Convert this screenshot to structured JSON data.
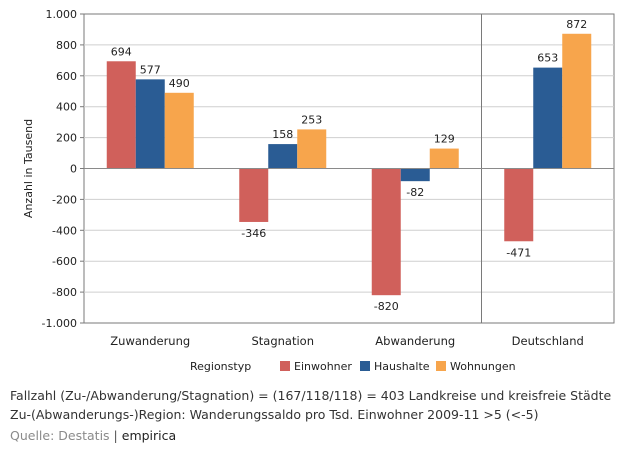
{
  "chart_data": {
    "type": "bar",
    "title": "",
    "xlabel": "Regionstyp",
    "ylabel": "Anzahl in Tausend",
    "ylim": [
      -1000,
      1000
    ],
    "yticks": [
      -1000,
      -800,
      -600,
      -400,
      -200,
      0,
      200,
      400,
      600,
      800,
      1000
    ],
    "ytick_labels": [
      "-1.000",
      "-800",
      "-600",
      "-400",
      "-200",
      "0",
      "200",
      "400",
      "600",
      "800",
      "1.000"
    ],
    "categories": [
      "Zuwanderung",
      "Stagnation",
      "Abwanderung",
      "Deutschland"
    ],
    "series": [
      {
        "name": "Einwohner",
        "color": "#d0605b",
        "values": [
          694,
          -346,
          -820,
          -471
        ]
      },
      {
        "name": "Haushalte",
        "color": "#2a5c94",
        "values": [
          577,
          158,
          -82,
          653
        ]
      },
      {
        "name": "Wohnungen",
        "color": "#f7a54c",
        "values": [
          490,
          253,
          129,
          872
        ]
      }
    ],
    "grid": true,
    "legend_position": "bottom",
    "separator_before_category": "Deutschland"
  },
  "footer": {
    "note_line1": "Fallzahl (Zu-/Abwanderung/Stagnation) = (167/118/118) = 403 Landkreise und kreisfreie Städte",
    "note_line2": "Zu-(Abwanderungs-)Region: Wanderungssaldo pro Tsd. Einwohner 2009-11 >5 (<-5)",
    "source_label": "Quelle: Destatis",
    "source_separator": "|",
    "source_brand": "empirica"
  }
}
